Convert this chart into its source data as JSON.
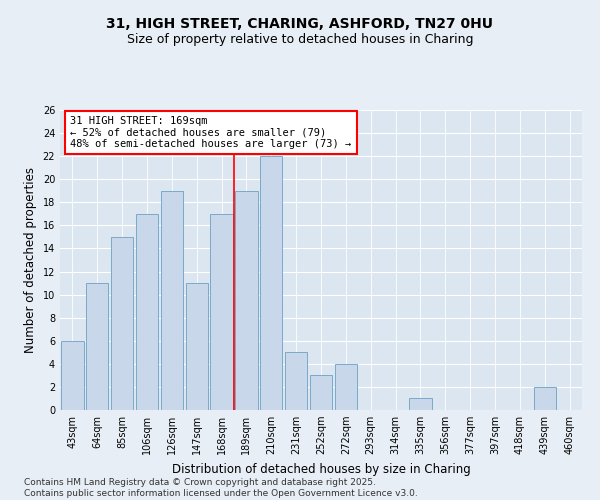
{
  "title1": "31, HIGH STREET, CHARING, ASHFORD, TN27 0HU",
  "title2": "Size of property relative to detached houses in Charing",
  "xlabel": "Distribution of detached houses by size in Charing",
  "ylabel": "Number of detached properties",
  "categories": [
    "43sqm",
    "64sqm",
    "85sqm",
    "106sqm",
    "126sqm",
    "147sqm",
    "168sqm",
    "189sqm",
    "210sqm",
    "231sqm",
    "252sqm",
    "272sqm",
    "293sqm",
    "314sqm",
    "335sqm",
    "356sqm",
    "377sqm",
    "397sqm",
    "418sqm",
    "439sqm",
    "460sqm"
  ],
  "values": [
    6,
    11,
    15,
    17,
    19,
    11,
    17,
    19,
    22,
    5,
    3,
    4,
    0,
    0,
    1,
    0,
    0,
    0,
    0,
    2,
    0
  ],
  "bar_color": "#c8d8ea",
  "bar_edge_color": "#7aaac8",
  "red_line_x": 6.5,
  "marker_label": "31 HIGH STREET: 169sqm",
  "annotation_line1": "← 52% of detached houses are smaller (79)",
  "annotation_line2": "48% of semi-detached houses are larger (73) →",
  "ylim": [
    0,
    26
  ],
  "yticks": [
    0,
    2,
    4,
    6,
    8,
    10,
    12,
    14,
    16,
    18,
    20,
    22,
    24,
    26
  ],
  "footnote": "Contains HM Land Registry data © Crown copyright and database right 2025.\nContains public sector information licensed under the Open Government Licence v3.0.",
  "bg_color": "#e8eef5",
  "plot_bg_color": "#dce6f0",
  "title_fontsize": 10,
  "subtitle_fontsize": 9,
  "axis_label_fontsize": 8.5,
  "tick_fontsize": 7,
  "annotation_fontsize": 7.5,
  "footnote_fontsize": 6.5,
  "bar_width": 0.9
}
